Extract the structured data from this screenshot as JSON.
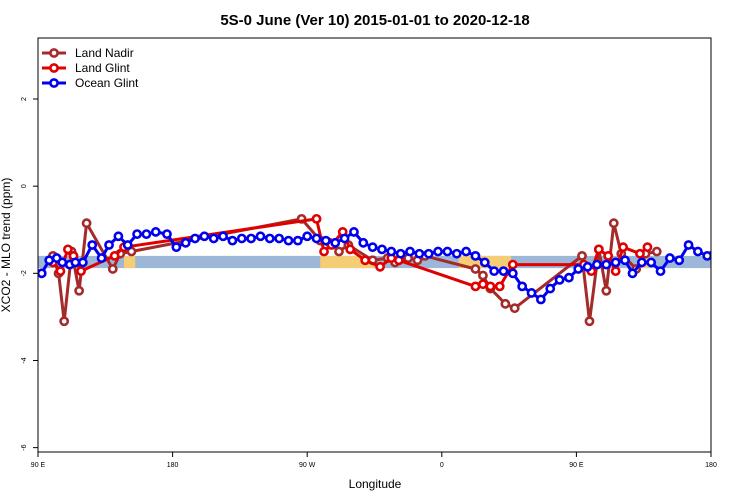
{
  "chart_data": {
    "type": "line",
    "title": "5S-0 June (Ver 10)   2015-01-01 to 2020-12-18",
    "xlabel": "Longitude",
    "ylabel": "XCO2 - MLO trend (ppm)",
    "xlim": [
      90,
      450
    ],
    "ylim": [
      -6.1,
      3.4
    ],
    "x_ticks": [
      {
        "value": 90,
        "label": "90 E"
      },
      {
        "value": 162,
        "label": "180"
      },
      {
        "value": 234,
        "label": "90 W"
      },
      {
        "value": 306,
        "label": "0"
      },
      {
        "value": 378,
        "label": "90 E"
      },
      {
        "value": 450,
        "label": "180"
      }
    ],
    "y_ticks": [
      {
        "value": -6,
        "label": "-6"
      },
      {
        "value": -4,
        "label": "-4"
      },
      {
        "value": -2,
        "label": "-2"
      },
      {
        "value": 0,
        "label": "0"
      },
      {
        "value": 2,
        "label": "2"
      }
    ],
    "bands": [
      {
        "name": "ocean-band",
        "x0": 90,
        "x1": 450,
        "y0": -1.88,
        "y1": -1.6,
        "color": "#9db7d9"
      },
      {
        "name": "land-band-1",
        "x0": 136,
        "x1": 142,
        "y0": -1.88,
        "y1": -1.6,
        "color": "#f5cd74"
      },
      {
        "name": "land-band-2",
        "x0": 241,
        "x1": 270,
        "y0": -1.88,
        "y1": -1.6,
        "color": "#f5cd74"
      },
      {
        "name": "land-band-3",
        "x0": 315,
        "x1": 343,
        "y0": -1.88,
        "y1": -1.6,
        "color": "#f5cd74"
      },
      {
        "name": "land-band-4",
        "x0": 413,
        "x1": 417,
        "y0": -1.88,
        "y1": -1.6,
        "color": "#f5cd74"
      }
    ],
    "legend": {
      "position": "top-left"
    },
    "series": [
      {
        "name": "Land Nadir",
        "color": "#a52a2a",
        "x": [
          98,
          101,
          104,
          108,
          112,
          116,
          130,
          134,
          140,
          231,
          241,
          246,
          251,
          256,
          269,
          277,
          281,
          283,
          288,
          293,
          297,
          324,
          328,
          332,
          340,
          345,
          381,
          385,
          390,
          394,
          398,
          402,
          410,
          415,
          421
        ],
        "y": [
          -1.6,
          -2.0,
          -3.1,
          -1.5,
          -2.4,
          -0.85,
          -1.9,
          -1.55,
          -1.5,
          -0.75,
          -1.25,
          -1.3,
          -1.5,
          -1.35,
          -1.7,
          -1.65,
          -1.75,
          -1.7,
          -1.65,
          -1.7,
          -1.6,
          -1.9,
          -2.05,
          -2.35,
          -2.7,
          -2.8,
          -1.6,
          -3.1,
          -1.45,
          -2.4,
          -0.85,
          -1.55,
          -1.9,
          -1.55,
          -1.5
        ]
      },
      {
        "name": "Land Glint",
        "color": "#e00000",
        "x": [
          98,
          102,
          106,
          109,
          113,
          131,
          136,
          239,
          243,
          247,
          253,
          257,
          265,
          273,
          279,
          283,
          324,
          328,
          332,
          337,
          344,
          382,
          386,
          390,
          395,
          399,
          403,
          412,
          416
        ],
        "y": [
          -1.75,
          -1.95,
          -1.45,
          -1.6,
          -1.95,
          -1.6,
          -1.4,
          -0.75,
          -1.5,
          -1.35,
          -1.05,
          -1.45,
          -1.7,
          -1.85,
          -1.65,
          -1.7,
          -2.3,
          -2.25,
          -2.3,
          -2.3,
          -1.8,
          -1.8,
          -1.95,
          -1.45,
          -1.6,
          -1.95,
          -1.4,
          -1.55,
          -1.4
        ]
      },
      {
        "name": "Ocean Glint",
        "color": "#0000ee",
        "x": [
          92,
          96,
          100,
          103,
          107,
          110,
          114,
          119,
          124,
          128,
          133,
          138,
          143,
          148,
          153,
          159,
          164,
          169,
          174,
          179,
          184,
          189,
          194,
          199,
          204,
          209,
          214,
          219,
          224,
          229,
          234,
          239,
          244,
          249,
          254,
          259,
          264,
          269,
          274,
          279,
          284,
          289,
          294,
          299,
          304,
          309,
          314,
          319,
          324,
          329,
          334,
          339,
          344,
          349,
          354,
          359,
          364,
          369,
          374,
          379,
          384,
          389,
          394,
          399,
          404,
          408,
          413,
          418,
          423,
          428,
          433,
          438,
          443,
          448,
          453
        ],
        "y": [
          -2.0,
          -1.7,
          -1.65,
          -1.75,
          -1.8,
          -1.75,
          -1.75,
          -1.35,
          -1.65,
          -1.35,
          -1.15,
          -1.35,
          -1.1,
          -1.1,
          -1.05,
          -1.1,
          -1.4,
          -1.3,
          -1.2,
          -1.15,
          -1.2,
          -1.15,
          -1.25,
          -1.2,
          -1.2,
          -1.15,
          -1.2,
          -1.2,
          -1.25,
          -1.25,
          -1.15,
          -1.2,
          -1.25,
          -1.3,
          -1.2,
          -1.05,
          -1.3,
          -1.4,
          -1.45,
          -1.5,
          -1.55,
          -1.5,
          -1.55,
          -1.55,
          -1.5,
          -1.5,
          -1.55,
          -1.5,
          -1.6,
          -1.75,
          -1.95,
          -1.95,
          -2.0,
          -2.3,
          -2.45,
          -2.6,
          -2.35,
          -2.15,
          -2.1,
          -1.9,
          -1.85,
          -1.8,
          -1.8,
          -1.75,
          -1.7,
          -2.0,
          -1.75,
          -1.75,
          -1.95,
          -1.65,
          -1.7,
          -1.35,
          -1.5,
          -1.6,
          -1.4
        ]
      }
    ]
  }
}
